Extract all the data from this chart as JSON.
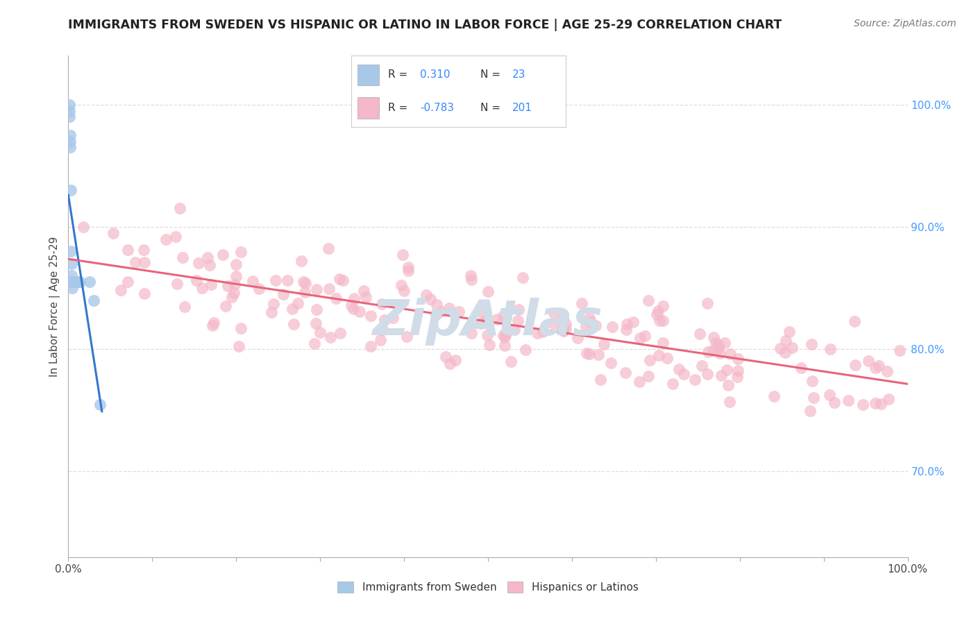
{
  "title": "IMMIGRANTS FROM SWEDEN VS HISPANIC OR LATINO IN LABOR FORCE | AGE 25-29 CORRELATION CHART",
  "source": "Source: ZipAtlas.com",
  "ylabel": "In Labor Force | Age 25-29",
  "xlim": [
    0.0,
    1.0
  ],
  "ylim": [
    0.63,
    1.04
  ],
  "yticks": [
    0.7,
    0.8,
    0.9,
    1.0
  ],
  "ytick_labels": [
    "70.0%",
    "80.0%",
    "90.0%",
    "100.0%"
  ],
  "xtick_positions": [
    0.0,
    0.1,
    0.2,
    0.3,
    0.4,
    0.5,
    0.6,
    0.7,
    0.8,
    0.9,
    1.0
  ],
  "blue_R": 0.31,
  "blue_N": 23,
  "pink_R": -0.783,
  "pink_N": 201,
  "blue_color": "#a8c8e8",
  "pink_color": "#f4b8c8",
  "blue_line_color": "#3377cc",
  "pink_line_color": "#e8647a",
  "legend_label_blue": "Immigrants from Sweden",
  "legend_label_pink": "Hispanics or Latinos",
  "grid_color": "#dddddd",
  "background_color": "#ffffff",
  "watermark_text": "ZipAtlas",
  "watermark_color": "#d0dce8",
  "title_color": "#222222",
  "source_color": "#777777",
  "ylabel_color": "#444444",
  "tick_color": "#444444",
  "right_tick_color": "#4499ff",
  "legend_text_color": "#333333",
  "legend_value_color": "#3388ff"
}
